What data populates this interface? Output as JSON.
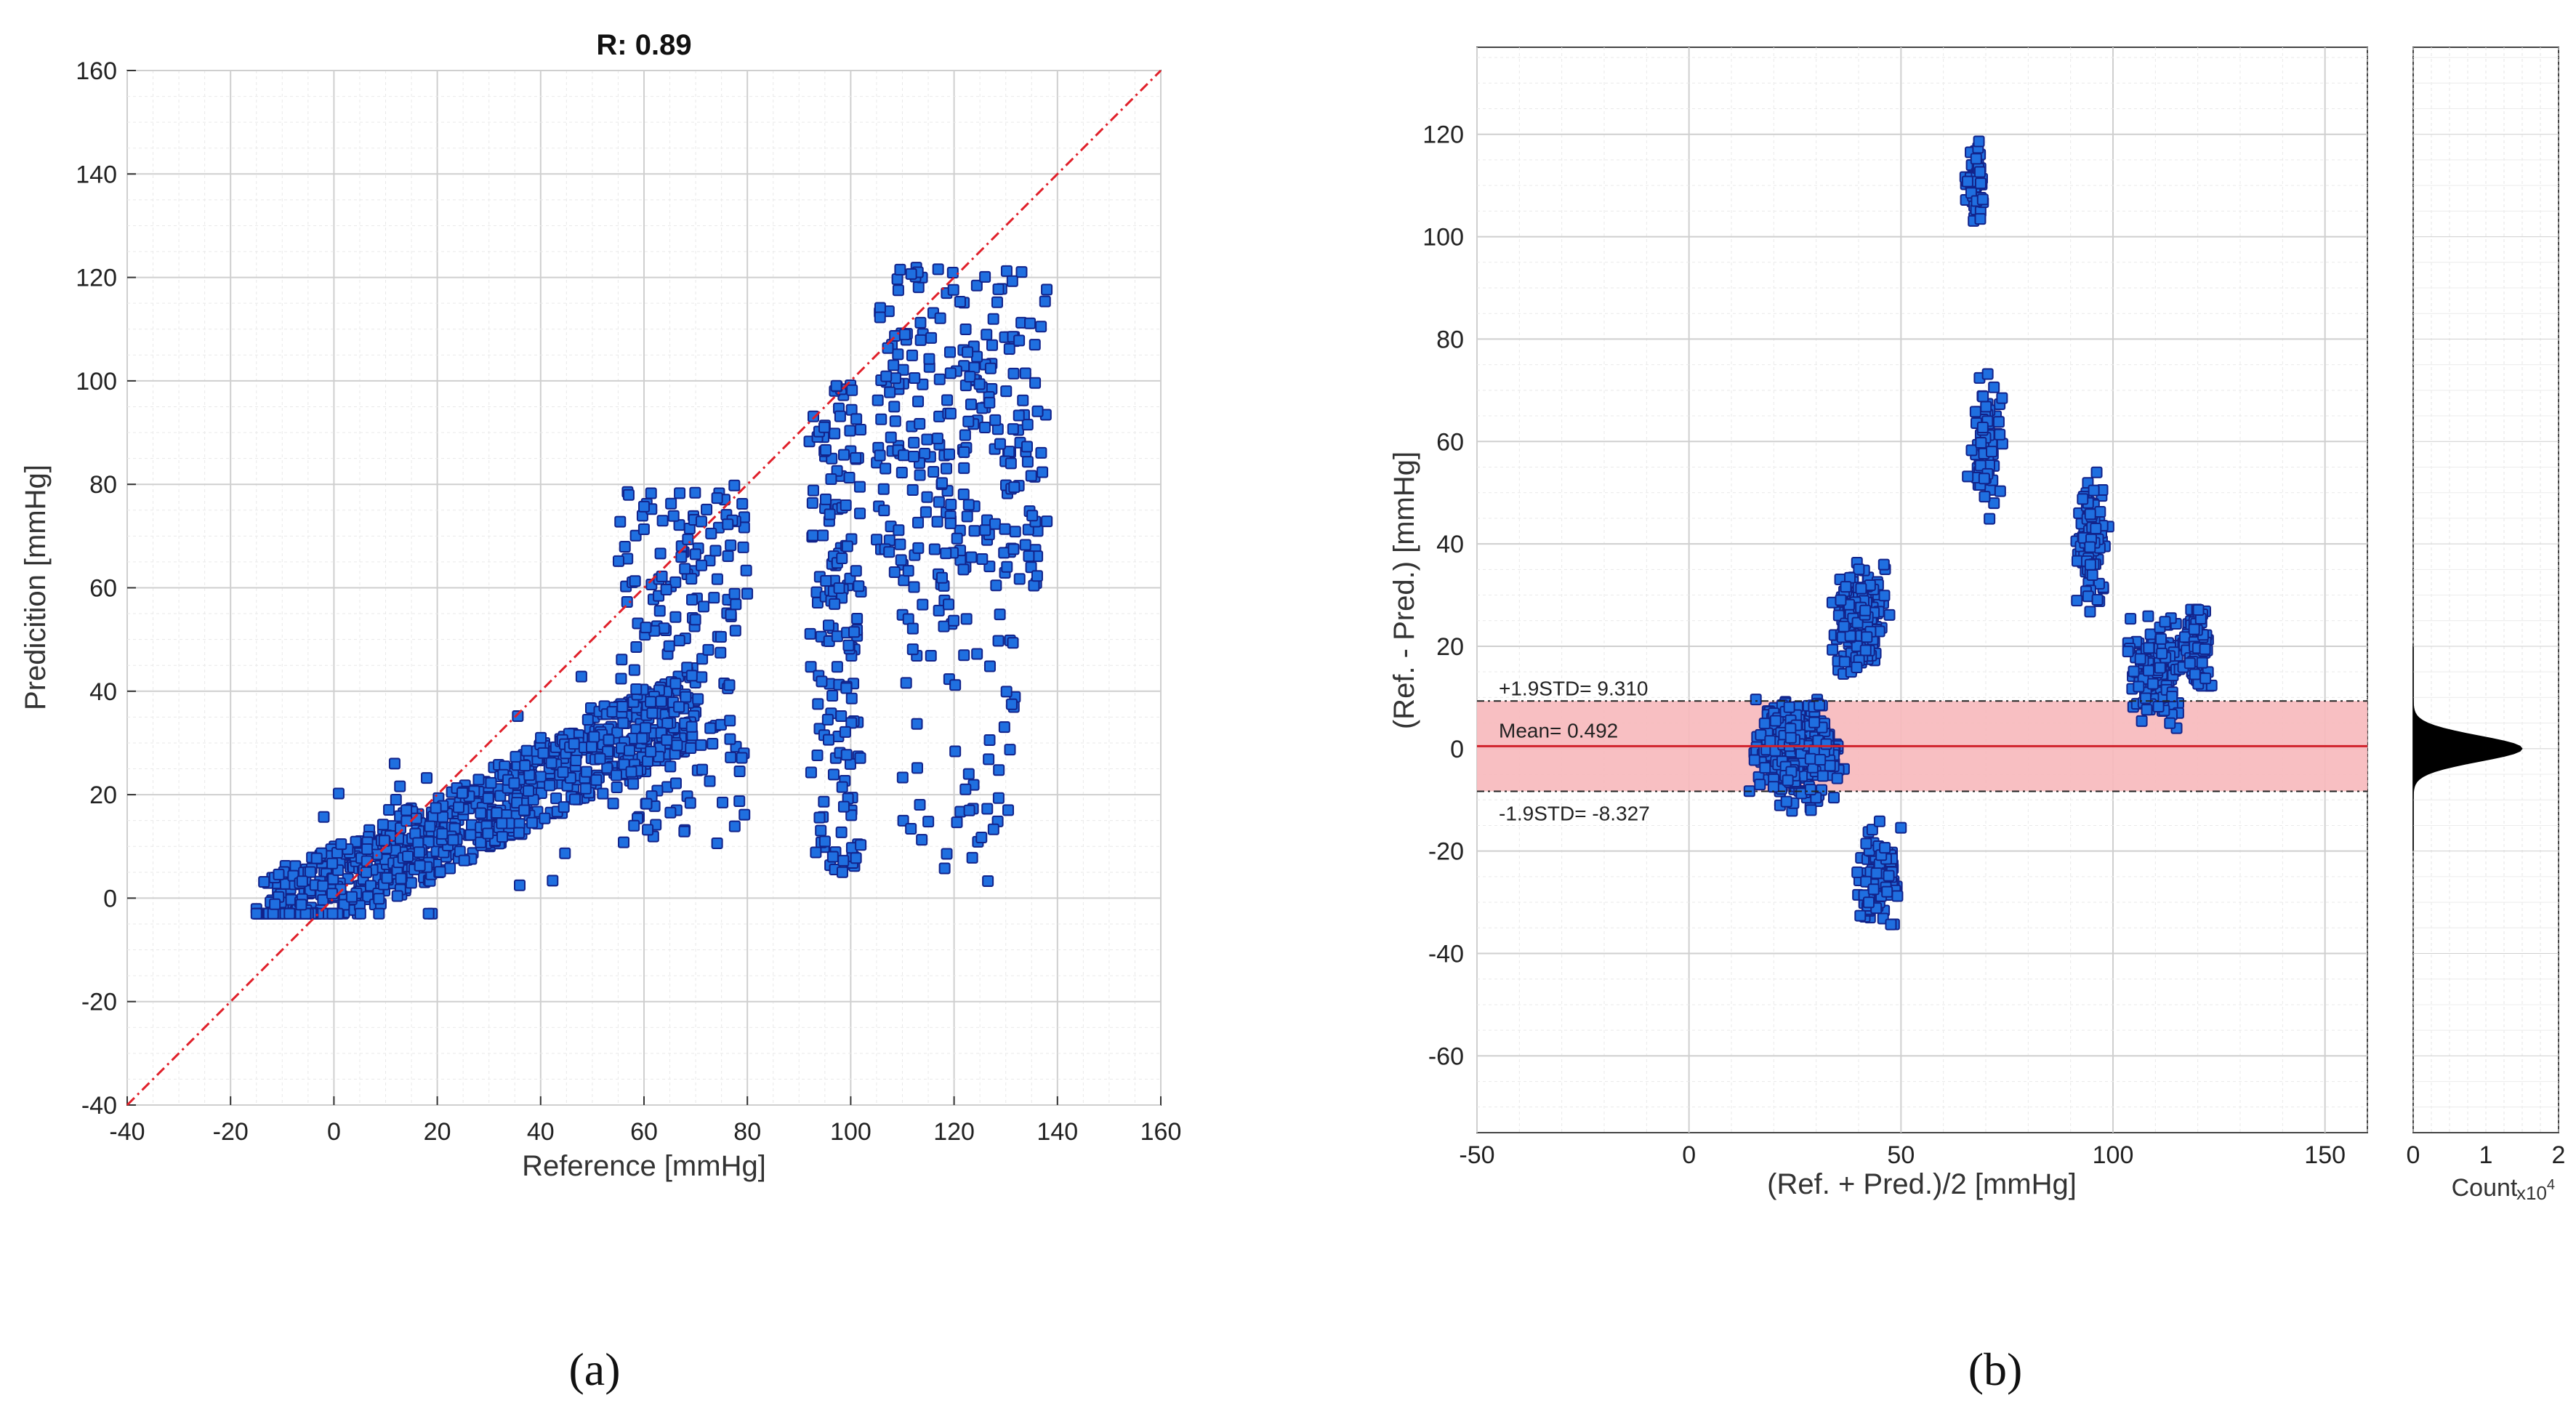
{
  "chart_data": [
    {
      "type": "scatter",
      "panel_label": "(a)",
      "title": "R: 0.89",
      "xlabel": "Reference [mmHg]",
      "ylabel": "Predicition [mmHg]",
      "xlim": [
        -40,
        160
      ],
      "ylim": [
        -40,
        160
      ],
      "xticks": [
        -40,
        -20,
        0,
        20,
        40,
        60,
        80,
        100,
        120,
        140,
        160
      ],
      "yticks": [
        -40,
        -20,
        0,
        20,
        40,
        60,
        80,
        100,
        120,
        140,
        160
      ],
      "grid": true,
      "identity_line": true,
      "marker_color": "#1f6fe0",
      "marker_edge": "#12238a",
      "line_color": "#e0202a",
      "clusters": [
        {
          "x": [
            -15,
            70
          ],
          "y_offset": [
            -8,
            8
          ],
          "slope": 0.5,
          "n": 900
        },
        {
          "x": [
            55,
            80
          ],
          "y": [
            10,
            80
          ],
          "n": 180
        },
        {
          "x": [
            92,
            102
          ],
          "y": [
            5,
            100
          ],
          "n": 160
        },
        {
          "x": [
            105,
            138
          ],
          "y": [
            60,
            122
          ],
          "n": 260
        },
        {
          "x": [
            110,
            132
          ],
          "y": [
            3,
            60
          ],
          "n": 60
        }
      ]
    },
    {
      "type": "scatter",
      "panel_label": "(b)",
      "xlabel": "(Ref. + Pred.)/2 [mmHg]",
      "ylabel": "(Ref. - Pred.) [mmHg]",
      "xlim": [
        -50,
        160
      ],
      "ylim": [
        -75,
        137
      ],
      "xticks": [
        -50,
        0,
        50,
        100,
        150
      ],
      "yticks": [
        -60,
        -40,
        -20,
        0,
        20,
        40,
        60,
        80,
        100,
        120
      ],
      "grid": true,
      "mean": 0.492,
      "upper_limit": 9.31,
      "lower_limit": -8.327,
      "mean_label": "Mean= 0.492",
      "upper_label": "+1.9STD= 9.310",
      "lower_label": "-1.9STD= -8.327",
      "band_color": "#f7b8bb",
      "marker_color": "#1f6fe0",
      "marker_edge": "#12238a",
      "histogram": {
        "xlabel": "Count",
        "exponent_label": "x10",
        "exponent_power": "4",
        "xlim": [
          0,
          2
        ],
        "xticks": [
          0,
          1,
          2
        ],
        "peak_count": 1.5,
        "center": 0,
        "spread": 2.5
      }
    }
  ]
}
